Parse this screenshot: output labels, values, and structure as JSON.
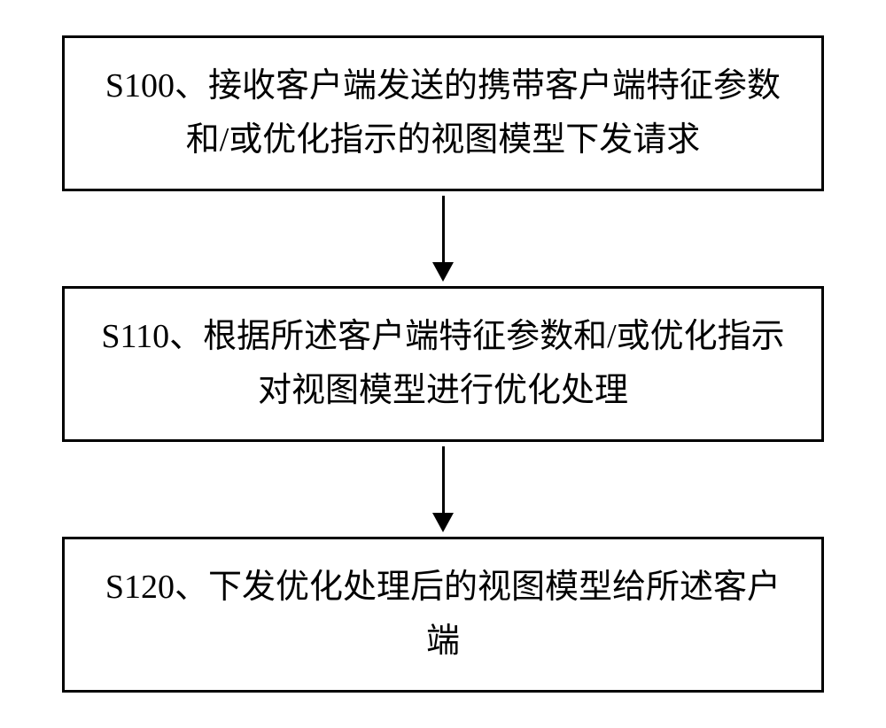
{
  "flowchart": {
    "type": "flowchart",
    "background_color": "#ffffff",
    "box_border_color": "#000000",
    "box_border_width": 3,
    "text_color": "#000000",
    "font_family": "KaiTi",
    "font_size": 38,
    "arrow_color": "#000000",
    "arrow_line_width": 3,
    "nodes": [
      {
        "id": "s100",
        "text": "S100、接收客户端发送的携带客户端特征参数和/或优化指示的视图模型下发请求"
      },
      {
        "id": "s110",
        "text": "S110、根据所述客户端特征参数和/或优化指示对视图模型进行优化处理"
      },
      {
        "id": "s120",
        "text": "S120、下发优化处理后的视图模型给所述客户端"
      }
    ],
    "edges": [
      {
        "from": "s100",
        "to": "s110"
      },
      {
        "from": "s110",
        "to": "s120"
      }
    ]
  }
}
